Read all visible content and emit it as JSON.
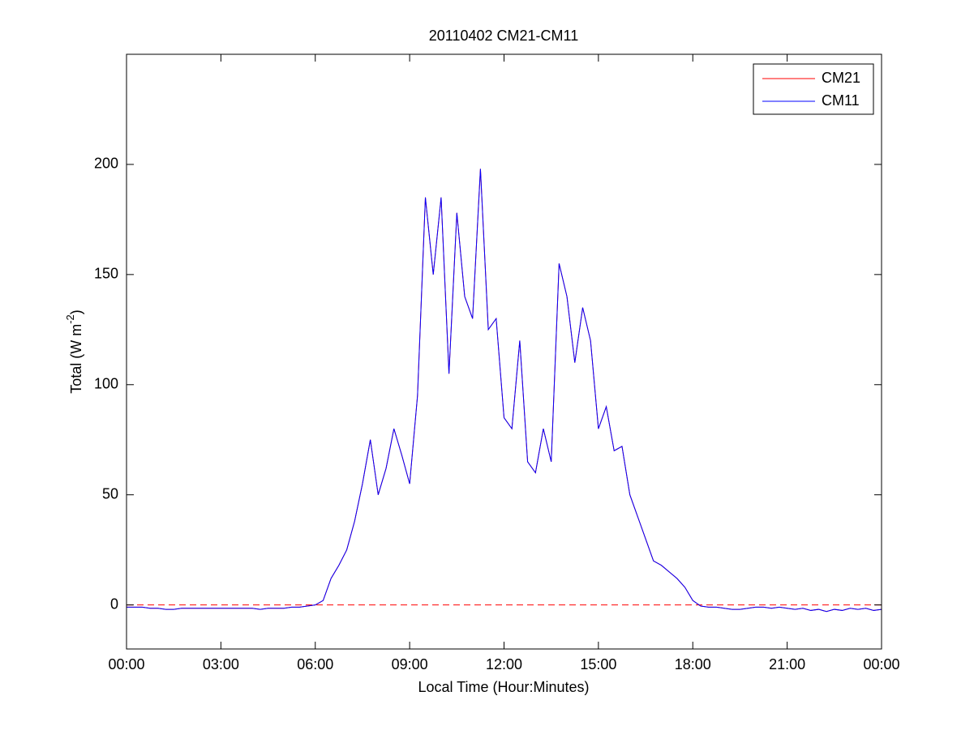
{
  "chart_data": {
    "type": "line",
    "title": "20110402 CM21-CM11",
    "xlabel": "Local Time (Hour:Minutes)",
    "ylabel": {
      "text": "Total (W m",
      "superscript": "-2",
      "suffix": ")"
    },
    "x": [
      0,
      0.25,
      0.5,
      0.75,
      1,
      1.25,
      1.5,
      1.75,
      2,
      2.25,
      2.5,
      2.75,
      3,
      3.25,
      3.5,
      3.75,
      4,
      4.25,
      4.5,
      4.75,
      5,
      5.25,
      5.5,
      5.75,
      6,
      6.25,
      6.5,
      6.75,
      7,
      7.25,
      7.5,
      7.75,
      8,
      8.25,
      8.5,
      8.75,
      9,
      9.25,
      9.5,
      9.75,
      10,
      10.25,
      10.5,
      10.75,
      11,
      11.25,
      11.5,
      11.75,
      12,
      12.25,
      12.5,
      12.75,
      13,
      13.25,
      13.5,
      13.75,
      14,
      14.25,
      14.5,
      14.75,
      15,
      15.25,
      15.5,
      15.75,
      16,
      16.25,
      16.5,
      16.75,
      17,
      17.25,
      17.5,
      17.75,
      18,
      18.25,
      18.5,
      18.75,
      19,
      19.25,
      19.5,
      19.75,
      20,
      20.25,
      20.5,
      20.75,
      21,
      21.25,
      21.5,
      21.75,
      22,
      22.25,
      22.5,
      22.75,
      23,
      23.25,
      23.5,
      23.75,
      24
    ],
    "series": [
      {
        "name": "CM21",
        "color": "#ff0000",
        "values": [
          -1,
          -1,
          -1,
          -1.5,
          -1.5,
          -2,
          -2,
          -1.5,
          -1.5,
          -1.5,
          -1.5,
          -1.5,
          -1.5,
          -1.5,
          -1.5,
          -1.5,
          -1.5,
          -2,
          -1.5,
          -1.5,
          -1.5,
          -1,
          -1,
          -0.5,
          0,
          2,
          12,
          18,
          25,
          38,
          55,
          75,
          50,
          62,
          80,
          68,
          55,
          95,
          185,
          150,
          185,
          105,
          178,
          140,
          130,
          198,
          125,
          130,
          85,
          80,
          120,
          65,
          60,
          80,
          65,
          155,
          140,
          110,
          135,
          120,
          80,
          90,
          70,
          72,
          50,
          40,
          30,
          20,
          18,
          15,
          12,
          8,
          2,
          -0.5,
          -1,
          -1,
          -1.5,
          -2,
          -2,
          -1.5,
          -1,
          -1,
          -1.5,
          -1,
          -1.5,
          -2,
          -1.5,
          -2.5,
          -2,
          -3,
          -2,
          -2.5,
          -1.5,
          -2,
          -1.5,
          -2.5,
          -2
        ]
      },
      {
        "name": "CM11",
        "color": "#0000ff",
        "values": [
          -1,
          -1,
          -1,
          -1.5,
          -1.5,
          -2,
          -2,
          -1.5,
          -1.5,
          -1.5,
          -1.5,
          -1.5,
          -1.5,
          -1.5,
          -1.5,
          -1.5,
          -1.5,
          -2,
          -1.5,
          -1.5,
          -1.5,
          -1,
          -1,
          -0.5,
          0,
          2,
          12,
          18,
          25,
          38,
          55,
          75,
          50,
          62,
          80,
          68,
          55,
          95,
          185,
          150,
          185,
          105,
          178,
          140,
          130,
          198,
          125,
          130,
          85,
          80,
          120,
          65,
          60,
          80,
          65,
          155,
          140,
          110,
          135,
          120,
          80,
          90,
          70,
          72,
          50,
          40,
          30,
          20,
          18,
          15,
          12,
          8,
          2,
          -0.5,
          -1,
          -1,
          -1.5,
          -2,
          -2,
          -1.5,
          -1,
          -1,
          -1.5,
          -1,
          -1.5,
          -2,
          -1.5,
          -2.5,
          -2,
          -3,
          -2,
          -2.5,
          -1.5,
          -2,
          -1.5,
          -2.5,
          -2
        ]
      }
    ],
    "reference_line": {
      "value": 0,
      "color": "#ff0000",
      "dashed": true
    },
    "xlim": [
      0,
      24
    ],
    "xticks": [
      {
        "value": 0,
        "label": "00:00"
      },
      {
        "value": 3,
        "label": "03:00"
      },
      {
        "value": 6,
        "label": "06:00"
      },
      {
        "value": 9,
        "label": "09:00"
      },
      {
        "value": 12,
        "label": "12:00"
      },
      {
        "value": 15,
        "label": "15:00"
      },
      {
        "value": 18,
        "label": "18:00"
      },
      {
        "value": 21,
        "label": "21:00"
      },
      {
        "value": 24,
        "label": "00:00"
      }
    ],
    "ylim": [
      -20,
      250
    ],
    "yticks": [
      0,
      50,
      100,
      150,
      200
    ],
    "grid": false,
    "legend": "upper right"
  }
}
